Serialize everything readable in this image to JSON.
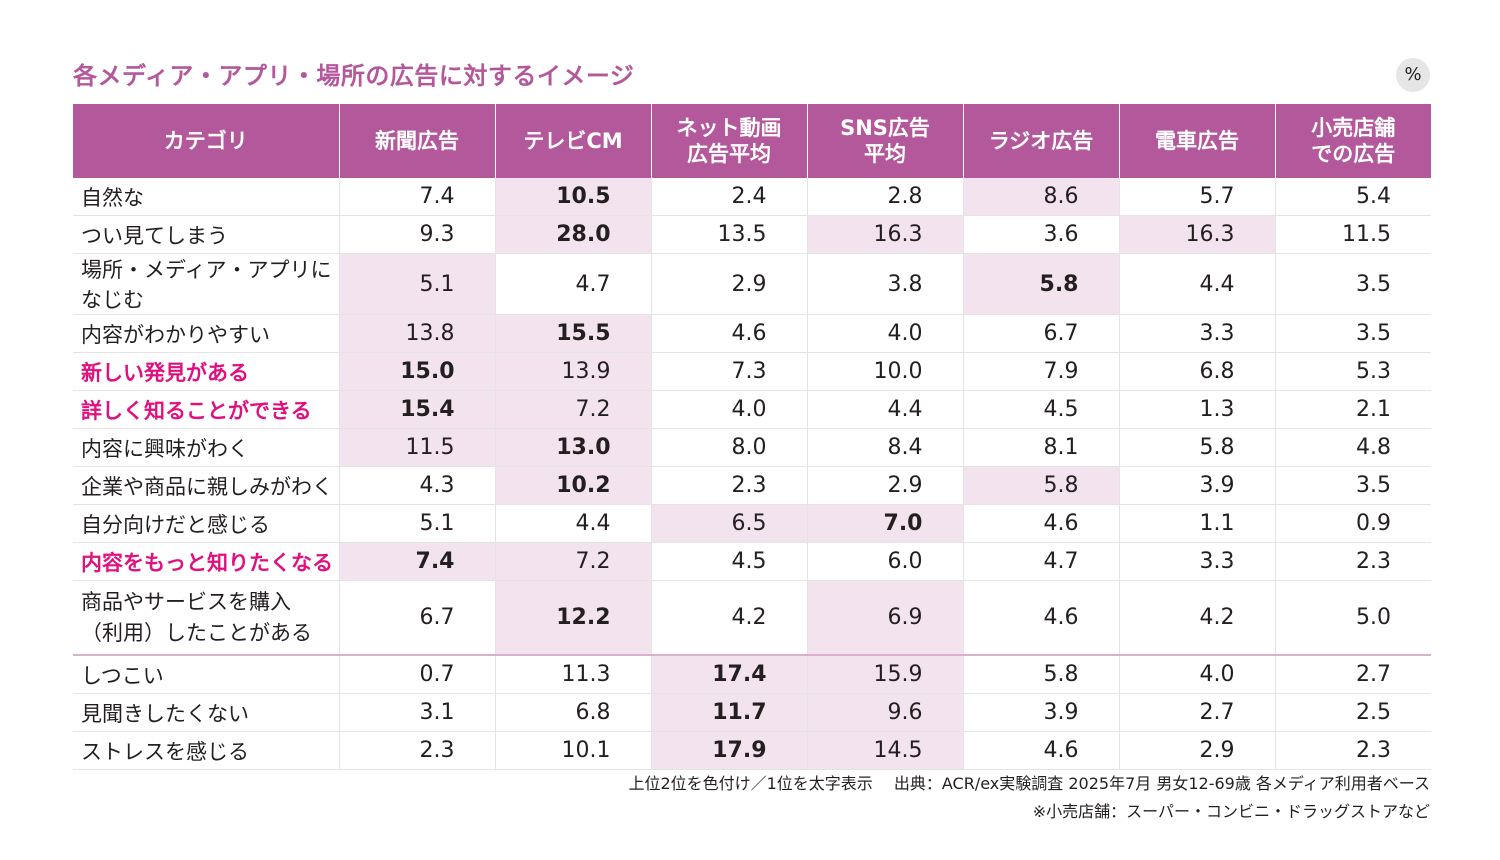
{
  "title": "各メディア・アプリ・場所の広告に対するイメージ",
  "unit_label": "%",
  "columns": [
    "カテゴリ",
    "新聞広告",
    "テレビCM",
    "ネット動画\n広告平均",
    "SNS広告\n平均",
    "ラジオ広告",
    "電車広告",
    "小売店舗\nでの広告"
  ],
  "highlight_color": "#e0117f",
  "shade_color": "#f2e3ee",
  "header_color": "#b4589c",
  "rows": [
    {
      "label": "自然な",
      "values": [
        "7.4",
        "10.5",
        "2.4",
        "2.8",
        "8.6",
        "5.7",
        "5.4"
      ],
      "shaded": [
        1,
        4
      ],
      "bold": [
        1
      ]
    },
    {
      "label": "つい見てしまう",
      "values": [
        "9.3",
        "28.0",
        "13.5",
        "16.3",
        "3.6",
        "16.3",
        "11.5"
      ],
      "shaded": [
        1,
        3,
        5
      ],
      "bold": [
        1
      ]
    },
    {
      "label": "場所・メディア・アプリになじむ",
      "values": [
        "5.1",
        "4.7",
        "2.9",
        "3.8",
        "5.8",
        "4.4",
        "3.5"
      ],
      "shaded": [
        0,
        4
      ],
      "bold": [
        4
      ]
    },
    {
      "label": "内容がわかりやすい",
      "values": [
        "13.8",
        "15.5",
        "4.6",
        "4.0",
        "6.7",
        "3.3",
        "3.5"
      ],
      "shaded": [
        0,
        1
      ],
      "bold": [
        1
      ]
    },
    {
      "label": "新しい発見がある",
      "values": [
        "15.0",
        "13.9",
        "7.3",
        "10.0",
        "7.9",
        "6.8",
        "5.3"
      ],
      "shaded": [
        0,
        1
      ],
      "bold": [
        0
      ],
      "highlight": true
    },
    {
      "label": "詳しく知ることができる",
      "values": [
        "15.4",
        "7.2",
        "4.0",
        "4.4",
        "4.5",
        "1.3",
        "2.1"
      ],
      "shaded": [
        0,
        1
      ],
      "bold": [
        0
      ],
      "highlight": true
    },
    {
      "label": "内容に興味がわく",
      "values": [
        "11.5",
        "13.0",
        "8.0",
        "8.4",
        "8.1",
        "5.8",
        "4.8"
      ],
      "shaded": [
        0,
        1
      ],
      "bold": [
        1
      ]
    },
    {
      "label": "企業や商品に親しみがわく",
      "values": [
        "4.3",
        "10.2",
        "2.3",
        "2.9",
        "5.8",
        "3.9",
        "3.5"
      ],
      "shaded": [
        1,
        4
      ],
      "bold": [
        1
      ]
    },
    {
      "label": "自分向けだと感じる",
      "values": [
        "5.1",
        "4.4",
        "6.5",
        "7.0",
        "4.6",
        "1.1",
        "0.9"
      ],
      "shaded": [
        2,
        3
      ],
      "bold": [
        3
      ]
    },
    {
      "label": "内容をもっと知りたくなる",
      "values": [
        "7.4",
        "7.2",
        "4.5",
        "6.0",
        "4.7",
        "3.3",
        "2.3"
      ],
      "shaded": [
        0,
        1
      ],
      "bold": [
        0
      ],
      "highlight": true
    },
    {
      "label": "商品やサービスを購入\n（利用）したことがある",
      "values": [
        "6.7",
        "12.2",
        "4.2",
        "6.9",
        "4.6",
        "4.2",
        "5.0"
      ],
      "shaded": [
        1,
        3
      ],
      "bold": [
        1
      ],
      "tall": true
    },
    {
      "label": "しつこい",
      "values": [
        "0.7",
        "11.3",
        "17.4",
        "15.9",
        "5.8",
        "4.0",
        "2.7"
      ],
      "shaded": [
        2,
        3
      ],
      "bold": [
        2
      ],
      "separator": true
    },
    {
      "label": "見聞きしたくない",
      "values": [
        "3.1",
        "6.8",
        "11.7",
        "9.6",
        "3.9",
        "2.7",
        "2.5"
      ],
      "shaded": [
        2,
        3
      ],
      "bold": [
        2
      ]
    },
    {
      "label": "ストレスを感じる",
      "values": [
        "2.3",
        "10.1",
        "17.9",
        "14.5",
        "4.6",
        "2.9",
        "2.3"
      ],
      "shaded": [
        2,
        3
      ],
      "bold": [
        2
      ]
    }
  ],
  "notes": [
    "上位2位を色付け／1位を太字表示　 出典：ACR/ex実験調査 2025年7月 男女12-69歳 各メディア利用者ベース",
    "※小売店舗：スーパー・コンビニ・ドラッグストアなど"
  ],
  "chart_data": {
    "type": "table",
    "title": "各メディア・アプリ・場所の広告に対するイメージ",
    "unit": "%",
    "categories": [
      "新聞広告",
      "テレビCM",
      "ネット動画広告平均",
      "SNS広告平均",
      "ラジオ広告",
      "電車広告",
      "小売店舗での広告"
    ],
    "series": [
      {
        "name": "自然な",
        "values": [
          7.4,
          10.5,
          2.4,
          2.8,
          8.6,
          5.7,
          5.4
        ]
      },
      {
        "name": "つい見てしまう",
        "values": [
          9.3,
          28.0,
          13.5,
          16.3,
          3.6,
          16.3,
          11.5
        ]
      },
      {
        "name": "場所・メディア・アプリになじむ",
        "values": [
          5.1,
          4.7,
          2.9,
          3.8,
          5.8,
          4.4,
          3.5
        ]
      },
      {
        "name": "内容がわかりやすい",
        "values": [
          13.8,
          15.5,
          4.6,
          4.0,
          6.7,
          3.3,
          3.5
        ]
      },
      {
        "name": "新しい発見がある",
        "values": [
          15.0,
          13.9,
          7.3,
          10.0,
          7.9,
          6.8,
          5.3
        ]
      },
      {
        "name": "詳しく知ることができる",
        "values": [
          15.4,
          7.2,
          4.0,
          4.4,
          4.5,
          1.3,
          2.1
        ]
      },
      {
        "name": "内容に興味がわく",
        "values": [
          11.5,
          13.0,
          8.0,
          8.4,
          8.1,
          5.8,
          4.8
        ]
      },
      {
        "name": "企業や商品に親しみがわく",
        "values": [
          4.3,
          10.2,
          2.3,
          2.9,
          5.8,
          3.9,
          3.5
        ]
      },
      {
        "name": "自分向けだと感じる",
        "values": [
          5.1,
          4.4,
          6.5,
          7.0,
          4.6,
          1.1,
          0.9
        ]
      },
      {
        "name": "内容をもっと知りたくなる",
        "values": [
          7.4,
          7.2,
          4.5,
          6.0,
          4.7,
          3.3,
          2.3
        ]
      },
      {
        "name": "商品やサービスを購入（利用）したことがある",
        "values": [
          6.7,
          12.2,
          4.2,
          6.9,
          4.6,
          4.2,
          5.0
        ]
      },
      {
        "name": "しつこい",
        "values": [
          0.7,
          11.3,
          17.4,
          15.9,
          5.8,
          4.0,
          2.7
        ]
      },
      {
        "name": "見聞きしたくない",
        "values": [
          3.1,
          6.8,
          11.7,
          9.6,
          3.9,
          2.7,
          2.5
        ]
      },
      {
        "name": "ストレスを感じる",
        "values": [
          2.3,
          10.1,
          17.9,
          14.5,
          4.6,
          2.9,
          2.3
        ]
      }
    ]
  }
}
